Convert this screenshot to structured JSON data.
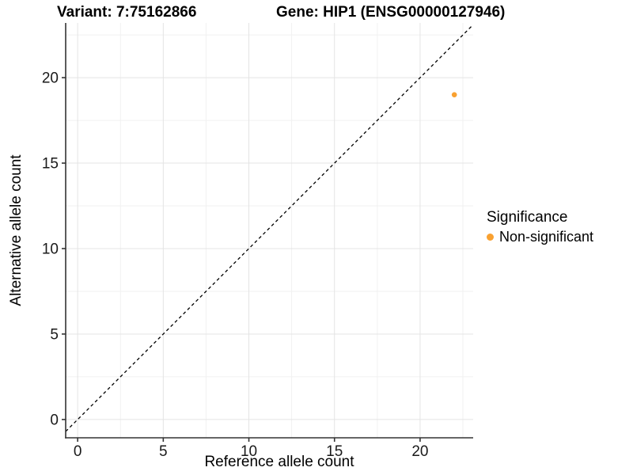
{
  "header": {
    "title_left": "Variant: 7:75162866",
    "title_right": "Gene: HIP1 (ENSG00000127946)"
  },
  "colors": {
    "point": "#F9A131",
    "grid_major": "#E4E4E4",
    "grid_minor": "#F1F1F1",
    "axis": "#333333",
    "dashed_line": "#000000",
    "tick_label": "#1a1a1a"
  },
  "legend": {
    "title": "Significance",
    "items": [
      {
        "label": "Non-significant",
        "color": "#F9A131"
      }
    ]
  },
  "chart_data": {
    "type": "scatter",
    "title": "Variant: 7:75162866   Gene: HIP1 (ENSG00000127946)",
    "xlabel": "Reference allele count",
    "ylabel": "Alternative allele count",
    "xlim": [
      -0.7,
      23.1
    ],
    "ylim": [
      -1.07,
      23.2
    ],
    "x_ticks": [
      0,
      5,
      10,
      15,
      20
    ],
    "y_ticks": [
      0,
      5,
      10,
      15,
      20
    ],
    "x_minor_ticks": [
      2.5,
      7.5,
      12.5,
      17.5,
      22.5
    ],
    "y_minor_ticks": [
      2.5,
      7.5,
      12.5,
      17.5,
      22.5
    ],
    "grid": true,
    "legend_title": "Significance",
    "legend_position": "right",
    "reference_line": "identity y=x dashed",
    "series": [
      {
        "name": "Non-significant",
        "color": "#F9A131",
        "points": [
          {
            "x": 22,
            "y": 19
          }
        ]
      }
    ]
  }
}
